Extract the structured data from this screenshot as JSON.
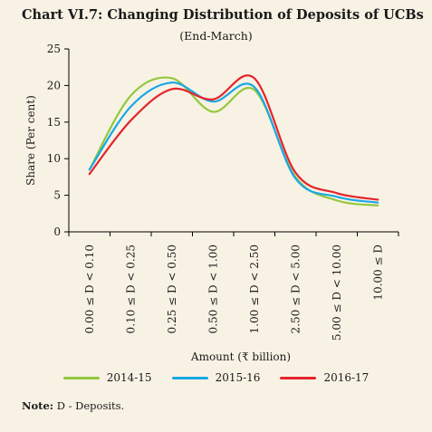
{
  "title": "Chart VI.7: Changing Distribution of Deposits of UCBs",
  "subtitle": "(End-March)",
  "note_label": "Note:",
  "note_text": " D - Deposits.",
  "chart_data": {
    "type": "line",
    "categories": [
      "0.00 ≤ D < 0.10",
      "0.10 ≤ D < 0.25",
      "0.25 ≤ D < 0.50",
      "0.50 ≤ D < 1.00",
      "1.00 ≤ D < 2.50",
      "2.50 ≤ D < 5.00",
      "5.00 ≤ D < 10.00",
      "10.00 ≤ D"
    ],
    "series": [
      {
        "name": "2014-15",
        "color": "#92c83e",
        "values": [
          8.5,
          18.6,
          21.0,
          16.4,
          19.4,
          7.5,
          4.3,
          3.6
        ]
      },
      {
        "name": "2015-16",
        "color": "#1aa7e6",
        "values": [
          8.5,
          17.1,
          20.4,
          17.8,
          19.8,
          7.3,
          4.8,
          4.0
        ]
      },
      {
        "name": "2016-17",
        "color": "#e5242b",
        "values": [
          7.9,
          15.2,
          19.5,
          18.1,
          21.0,
          8.1,
          5.3,
          4.4
        ]
      }
    ],
    "xlabel": "Amount (₹ billion)",
    "ylabel": "Share (Per cent)",
    "ylim": [
      0,
      25
    ],
    "yticks": [
      0,
      5,
      10,
      15,
      20,
      25
    ],
    "grid": false,
    "legend_position": "bottom"
  }
}
